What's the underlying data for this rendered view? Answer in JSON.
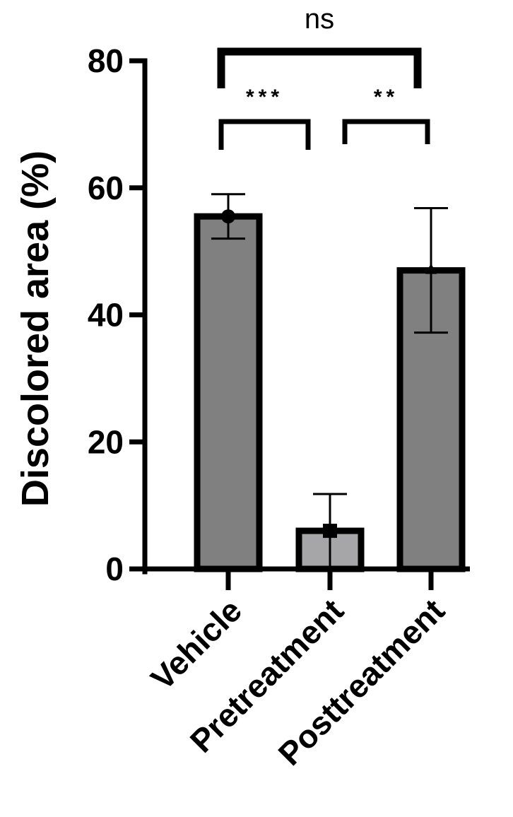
{
  "chart_data": {
    "type": "bar",
    "title": "",
    "xlabel": "",
    "ylabel": "Discolored area (%)",
    "ylim": [
      0,
      80
    ],
    "yticks": [
      "0",
      "20",
      "40",
      "60",
      "80"
    ],
    "grid": false,
    "categories": [
      "Vehicle",
      "Pretreatment",
      "Posttreatment"
    ],
    "values": [
      55.5,
      6.0,
      47.0
    ],
    "errors": [
      3.5,
      5.8,
      9.8
    ],
    "bar_colors": [
      "#808080",
      "#a6a6a8",
      "#808080"
    ],
    "markers": [
      "circle",
      "square",
      "triangle"
    ],
    "significance": [
      {
        "from": "Vehicle",
        "to": "Pretreatment",
        "label": "***"
      },
      {
        "from": "Pretreatment",
        "to": "Posttreatment",
        "label": "**"
      },
      {
        "from": "Vehicle",
        "to": "Posttreatment",
        "label": "ns"
      }
    ]
  }
}
